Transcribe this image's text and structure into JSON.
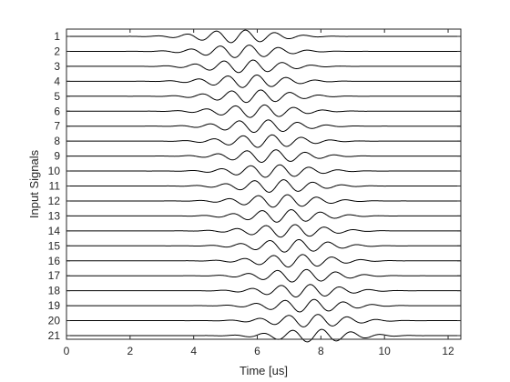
{
  "chart_data": {
    "type": "line",
    "title": "",
    "xlabel": "Time [us]",
    "ylabel": "Input Signals",
    "xlim": [
      0,
      12.4
    ],
    "xticks": [
      "0",
      "2",
      "4",
      "6",
      "8",
      "10",
      "12"
    ],
    "xtick_values": [
      0,
      2,
      4,
      6,
      8,
      10,
      12
    ],
    "yticks": [
      "1",
      "2",
      "3",
      "4",
      "5",
      "6",
      "7",
      "8",
      "9",
      "10",
      "11",
      "12",
      "13",
      "14",
      "15",
      "16",
      "17",
      "18",
      "19",
      "20",
      "21"
    ],
    "grid": false,
    "legend": "none",
    "series_color": "#000000",
    "axis_color": "#262626",
    "series": [
      {
        "label": "1",
        "center_time": 5.4,
        "carrier_mhz": 1.08,
        "envelope_sigma_us": 1.0
      },
      {
        "label": "2",
        "center_time": 5.52,
        "carrier_mhz": 1.08,
        "envelope_sigma_us": 1.0
      },
      {
        "label": "3",
        "center_time": 5.64,
        "carrier_mhz": 1.08,
        "envelope_sigma_us": 1.0
      },
      {
        "label": "4",
        "center_time": 5.76,
        "carrier_mhz": 1.08,
        "envelope_sigma_us": 1.0
      },
      {
        "label": "5",
        "center_time": 5.88,
        "carrier_mhz": 1.08,
        "envelope_sigma_us": 1.0
      },
      {
        "label": "6",
        "center_time": 6.0,
        "carrier_mhz": 1.08,
        "envelope_sigma_us": 1.0
      },
      {
        "label": "7",
        "center_time": 6.12,
        "carrier_mhz": 1.08,
        "envelope_sigma_us": 1.0
      },
      {
        "label": "8",
        "center_time": 6.24,
        "carrier_mhz": 1.08,
        "envelope_sigma_us": 1.0
      },
      {
        "label": "9",
        "center_time": 6.36,
        "carrier_mhz": 1.08,
        "envelope_sigma_us": 1.0
      },
      {
        "label": "10",
        "center_time": 6.48,
        "carrier_mhz": 1.08,
        "envelope_sigma_us": 1.0
      },
      {
        "label": "11",
        "center_time": 6.6,
        "carrier_mhz": 1.08,
        "envelope_sigma_us": 1.0
      },
      {
        "label": "12",
        "center_time": 6.72,
        "carrier_mhz": 1.08,
        "envelope_sigma_us": 1.0
      },
      {
        "label": "13",
        "center_time": 6.84,
        "carrier_mhz": 1.08,
        "envelope_sigma_us": 1.0
      },
      {
        "label": "14",
        "center_time": 6.96,
        "carrier_mhz": 1.08,
        "envelope_sigma_us": 1.0
      },
      {
        "label": "15",
        "center_time": 7.08,
        "carrier_mhz": 1.08,
        "envelope_sigma_us": 1.0
      },
      {
        "label": "16",
        "center_time": 7.2,
        "carrier_mhz": 1.08,
        "envelope_sigma_us": 1.0
      },
      {
        "label": "17",
        "center_time": 7.32,
        "carrier_mhz": 1.08,
        "envelope_sigma_us": 1.0
      },
      {
        "label": "18",
        "center_time": 7.44,
        "carrier_mhz": 1.08,
        "envelope_sigma_us": 1.0
      },
      {
        "label": "19",
        "center_time": 7.56,
        "carrier_mhz": 1.08,
        "envelope_sigma_us": 1.0
      },
      {
        "label": "20",
        "center_time": 7.68,
        "carrier_mhz": 1.08,
        "envelope_sigma_us": 1.0
      },
      {
        "label": "21",
        "center_time": 7.8,
        "carrier_mhz": 1.08,
        "envelope_sigma_us": 1.0
      }
    ]
  }
}
